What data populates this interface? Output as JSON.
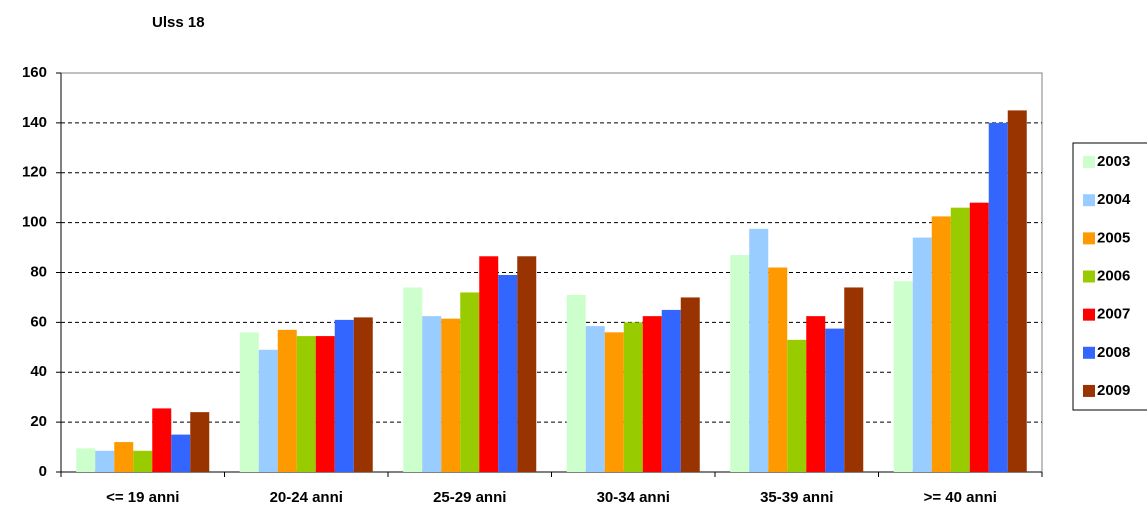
{
  "chart_data": {
    "type": "bar",
    "title": "Ulss 18",
    "categories": [
      "<= 19 anni",
      "20-24 anni",
      "25-29 anni",
      "30-34 anni",
      "35-39 anni",
      ">= 40 anni"
    ],
    "series": [
      {
        "name": "2003",
        "color": "#ccffcc",
        "values": [
          9.5,
          56,
          74,
          71,
          87,
          76.5
        ]
      },
      {
        "name": "2004",
        "color": "#99ccff",
        "values": [
          8.5,
          49,
          62.5,
          58.5,
          97.5,
          94
        ]
      },
      {
        "name": "2005",
        "color": "#ff9900",
        "values": [
          12,
          57,
          61.5,
          56,
          82,
          102.5
        ]
      },
      {
        "name": "2006",
        "color": "#99cc00",
        "values": [
          8.5,
          54.5,
          72,
          60,
          53,
          106
        ]
      },
      {
        "name": "2007",
        "color": "#ff0000",
        "values": [
          25.5,
          54.5,
          86.5,
          62.5,
          62.5,
          108
        ]
      },
      {
        "name": "2008",
        "color": "#3366ff",
        "values": [
          15,
          61,
          79,
          65,
          57.5,
          140
        ]
      },
      {
        "name": "2009",
        "color": "#993300",
        "values": [
          24,
          62,
          86.5,
          70,
          74,
          145
        ]
      }
    ],
    "ylim": [
      0,
      160
    ],
    "yticks": [
      0,
      20,
      40,
      60,
      80,
      100,
      120,
      140,
      160
    ],
    "grid": true,
    "legend": "right"
  }
}
